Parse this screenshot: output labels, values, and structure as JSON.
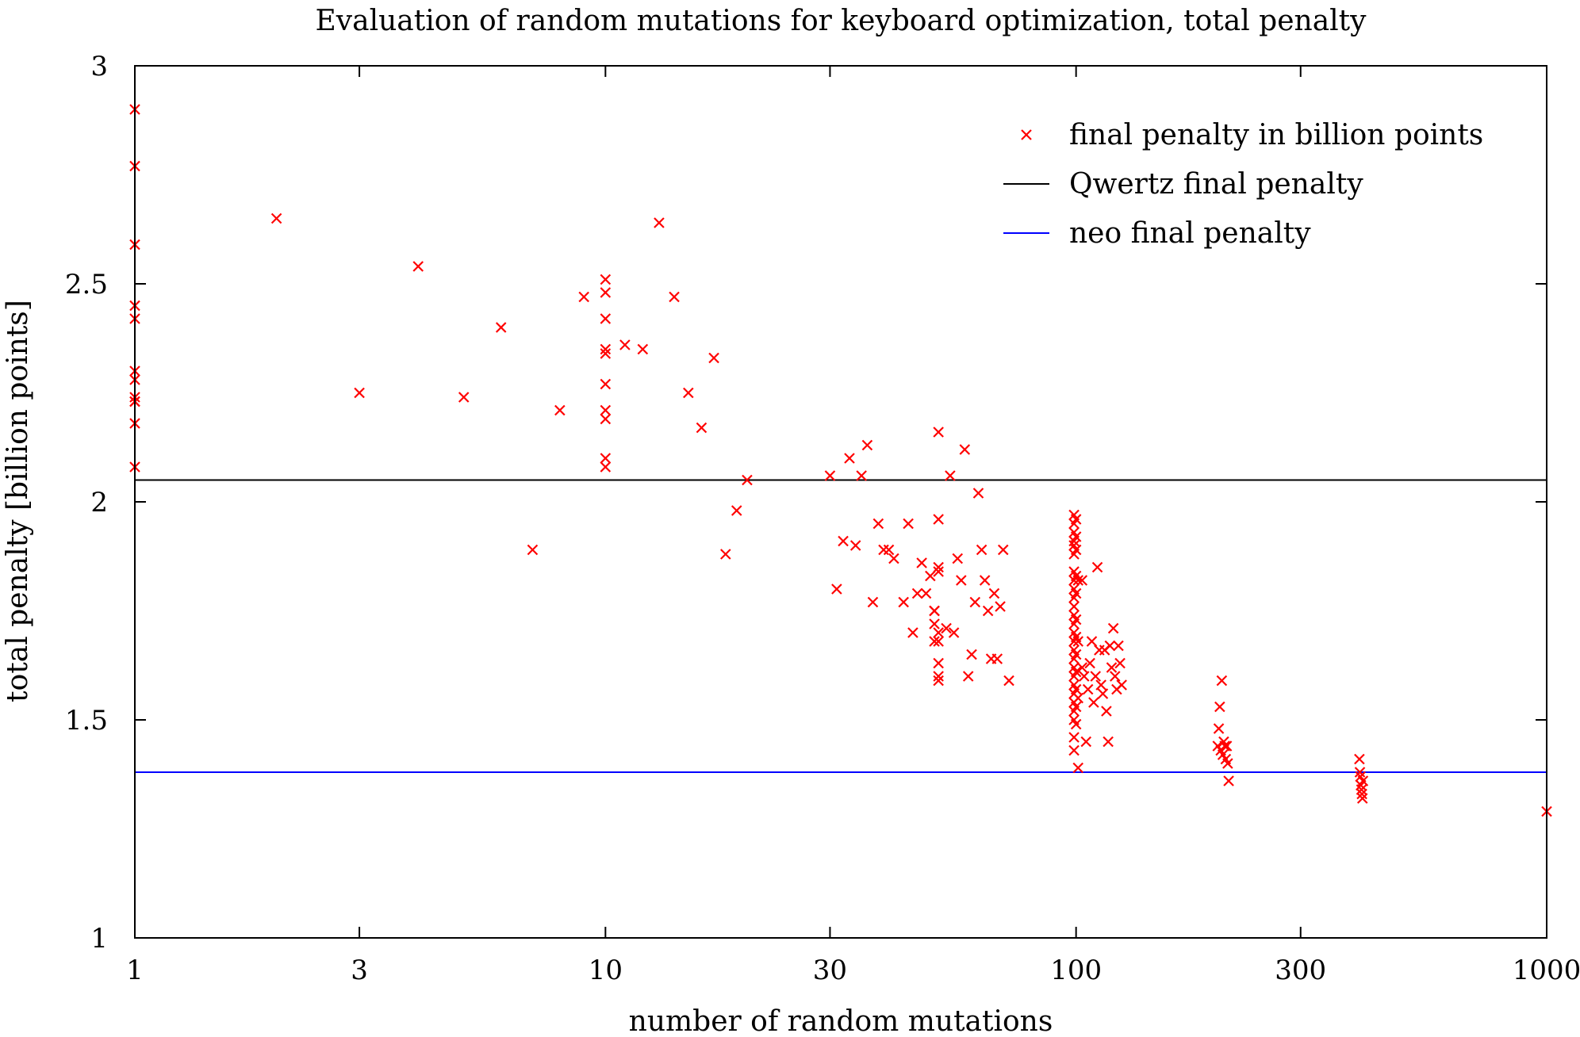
{
  "chart_data": {
    "type": "scatter",
    "title": "Evaluation of random mutations for keyboard optimization, total penalty",
    "xlabel": "number of random mutations",
    "ylabel": "total penalty [billion points]",
    "x_scale": "log",
    "xlim": [
      1,
      1000
    ],
    "ylim": [
      1,
      3
    ],
    "x_ticks": [
      1,
      3,
      10,
      30,
      100,
      300,
      1000
    ],
    "x_tick_labels": [
      "1",
      "3",
      "10",
      "30",
      "100",
      "300",
      "1000"
    ],
    "y_ticks": [
      1,
      1.5,
      2,
      2.5,
      3
    ],
    "y_tick_labels": [
      "1",
      "1.5",
      "2",
      "2.5",
      "3"
    ],
    "grid": false,
    "legend_position": "top-right",
    "colors": {
      "points": "#ff0000",
      "qwertz": "#000000",
      "neo": "#0000ff",
      "axes": "#000000"
    },
    "series": [
      {
        "name": "final penalty in billion points",
        "kind": "points",
        "points": [
          [
            1,
            2.9
          ],
          [
            1,
            2.77
          ],
          [
            1,
            2.59
          ],
          [
            1,
            2.45
          ],
          [
            1,
            2.42
          ],
          [
            1,
            2.3
          ],
          [
            1,
            2.28
          ],
          [
            1,
            2.24
          ],
          [
            1,
            2.23
          ],
          [
            1,
            2.23
          ],
          [
            1,
            2.18
          ],
          [
            1,
            2.08
          ],
          [
            2,
            2.65
          ],
          [
            3,
            2.25
          ],
          [
            4,
            2.54
          ],
          [
            5,
            2.24
          ],
          [
            6,
            2.4
          ],
          [
            7,
            1.89
          ],
          [
            8,
            2.21
          ],
          [
            9,
            2.47
          ],
          [
            10,
            2.51
          ],
          [
            10,
            2.48
          ],
          [
            10,
            2.42
          ],
          [
            10,
            2.35
          ],
          [
            10,
            2.34
          ],
          [
            10,
            2.27
          ],
          [
            10,
            2.21
          ],
          [
            10,
            2.19
          ],
          [
            10,
            2.1
          ],
          [
            10,
            2.08
          ],
          [
            11,
            2.36
          ],
          [
            12,
            2.35
          ],
          [
            13,
            2.64
          ],
          [
            14,
            2.47
          ],
          [
            15,
            2.25
          ],
          [
            16,
            2.17
          ],
          [
            17,
            2.33
          ],
          [
            18,
            1.88
          ],
          [
            19,
            1.98
          ],
          [
            20,
            2.05
          ],
          [
            30,
            2.06
          ],
          [
            31,
            1.8
          ],
          [
            32,
            1.91
          ],
          [
            33,
            2.1
          ],
          [
            34,
            1.9
          ],
          [
            35,
            2.06
          ],
          [
            36,
            2.13
          ],
          [
            37,
            1.77
          ],
          [
            38,
            1.95
          ],
          [
            39,
            1.89
          ],
          [
            40,
            1.89
          ],
          [
            41,
            1.87
          ],
          [
            43,
            1.77
          ],
          [
            44,
            1.95
          ],
          [
            45,
            1.7
          ],
          [
            46,
            1.79
          ],
          [
            47,
            1.86
          ],
          [
            48,
            1.79
          ],
          [
            49,
            1.83
          ],
          [
            50,
            1.68
          ],
          [
            50,
            1.75
          ],
          [
            50,
            1.75
          ],
          [
            50,
            1.72
          ],
          [
            51,
            2.16
          ],
          [
            51,
            1.96
          ],
          [
            51,
            1.85
          ],
          [
            51,
            1.84
          ],
          [
            51,
            1.7
          ],
          [
            51,
            1.68
          ],
          [
            51,
            1.63
          ],
          [
            51,
            1.6
          ],
          [
            51,
            1.59
          ],
          [
            53,
            1.71
          ],
          [
            54,
            2.06
          ],
          [
            55,
            1.7
          ],
          [
            56,
            1.87
          ],
          [
            57,
            1.82
          ],
          [
            58,
            2.12
          ],
          [
            59,
            1.6
          ],
          [
            60,
            1.65
          ],
          [
            61,
            1.77
          ],
          [
            62,
            2.02
          ],
          [
            63,
            1.89
          ],
          [
            64,
            1.82
          ],
          [
            65,
            1.75
          ],
          [
            66,
            1.64
          ],
          [
            67,
            1.79
          ],
          [
            68,
            1.64
          ],
          [
            69,
            1.76
          ],
          [
            70,
            1.89
          ],
          [
            72,
            1.59
          ],
          [
            99,
            1.97
          ],
          [
            99,
            1.95
          ],
          [
            99,
            1.93
          ],
          [
            99,
            1.91
          ],
          [
            99,
            1.9
          ],
          [
            99,
            1.88
          ],
          [
            99,
            1.84
          ],
          [
            99,
            1.82
          ],
          [
            99,
            1.8
          ],
          [
            99,
            1.78
          ],
          [
            99,
            1.76
          ],
          [
            99,
            1.74
          ],
          [
            99,
            1.72
          ],
          [
            99,
            1.7
          ],
          [
            99,
            1.68
          ],
          [
            99,
            1.66
          ],
          [
            99,
            1.64
          ],
          [
            99,
            1.62
          ],
          [
            99,
            1.6
          ],
          [
            99,
            1.58
          ],
          [
            99,
            1.56
          ],
          [
            99,
            1.54
          ],
          [
            99,
            1.52
          ],
          [
            99,
            1.5
          ],
          [
            99,
            1.46
          ],
          [
            99,
            1.43
          ],
          [
            100,
            1.96
          ],
          [
            100,
            1.92
          ],
          [
            100,
            1.89
          ],
          [
            100,
            1.83
          ],
          [
            100,
            1.79
          ],
          [
            100,
            1.73
          ],
          [
            100,
            1.69
          ],
          [
            100,
            1.65
          ],
          [
            100,
            1.61
          ],
          [
            100,
            1.57
          ],
          [
            100,
            1.53
          ],
          [
            100,
            1.49
          ],
          [
            101,
            1.82
          ],
          [
            101,
            1.68
          ],
          [
            101,
            1.55
          ],
          [
            101,
            1.39
          ],
          [
            103,
            1.82
          ],
          [
            103,
            1.62
          ],
          [
            104,
            1.6
          ],
          [
            105,
            1.45
          ],
          [
            106,
            1.57
          ],
          [
            107,
            1.63
          ],
          [
            108,
            1.68
          ],
          [
            109,
            1.54
          ],
          [
            110,
            1.6
          ],
          [
            111,
            1.85
          ],
          [
            112,
            1.66
          ],
          [
            113,
            1.58
          ],
          [
            114,
            1.56
          ],
          [
            115,
            1.66
          ],
          [
            116,
            1.52
          ],
          [
            117,
            1.45
          ],
          [
            118,
            1.67
          ],
          [
            119,
            1.62
          ],
          [
            120,
            1.71
          ],
          [
            121,
            1.6
          ],
          [
            122,
            1.57
          ],
          [
            123,
            1.67
          ],
          [
            124,
            1.63
          ],
          [
            125,
            1.58
          ],
          [
            200,
            1.44
          ],
          [
            201,
            1.48
          ],
          [
            202,
            1.53
          ],
          [
            203,
            1.43
          ],
          [
            204,
            1.59
          ],
          [
            205,
            1.42
          ],
          [
            206,
            1.45
          ],
          [
            207,
            1.44
          ],
          [
            208,
            1.41
          ],
          [
            209,
            1.44
          ],
          [
            210,
            1.4
          ],
          [
            211,
            1.36
          ],
          [
            400,
            1.41
          ],
          [
            401,
            1.38
          ],
          [
            402,
            1.37
          ],
          [
            403,
            1.35
          ],
          [
            404,
            1.34
          ],
          [
            405,
            1.33
          ],
          [
            406,
            1.32
          ],
          [
            407,
            1.36
          ],
          [
            1000,
            1.29
          ]
        ]
      },
      {
        "name": "Qwertz final penalty",
        "kind": "hline",
        "y": 2.05
      },
      {
        "name": "neo final penalty",
        "kind": "hline",
        "y": 1.38
      }
    ]
  }
}
